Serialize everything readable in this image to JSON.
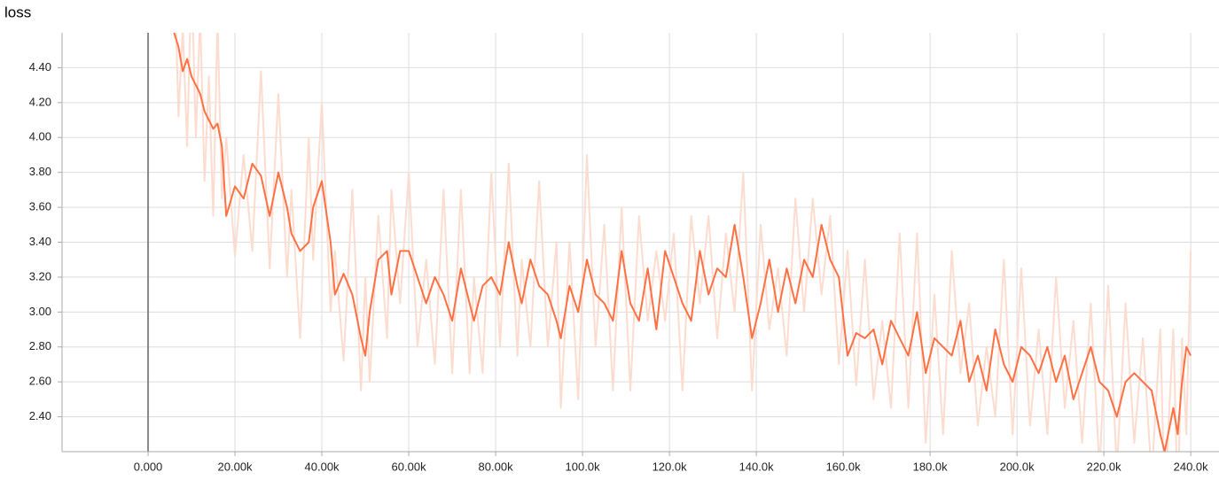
{
  "chart_data": {
    "type": "line",
    "title": "loss",
    "x": [
      6000,
      7000,
      8000,
      9000,
      10000,
      11000,
      12000,
      13000,
      14000,
      15000,
      16000,
      17000,
      18000,
      20000,
      22000,
      24000,
      26000,
      28000,
      30000,
      32000,
      33000,
      35000,
      37000,
      38000,
      40000,
      42000,
      43000,
      45000,
      47000,
      49000,
      50000,
      51000,
      53000,
      55000,
      56000,
      58000,
      60000,
      62000,
      64000,
      66000,
      68000,
      70000,
      72000,
      74000,
      75000,
      77000,
      79000,
      81000,
      83000,
      85000,
      86000,
      88000,
      90000,
      92000,
      94000,
      95000,
      97000,
      99000,
      101000,
      103000,
      105000,
      107000,
      109000,
      111000,
      113000,
      115000,
      117000,
      119000,
      121000,
      123000,
      125000,
      127000,
      129000,
      131000,
      133000,
      135000,
      137000,
      139000,
      141000,
      143000,
      145000,
      147000,
      149000,
      151000,
      153000,
      155000,
      157000,
      159000,
      161000,
      163000,
      165000,
      167000,
      169000,
      171000,
      173000,
      175000,
      177000,
      179000,
      181000,
      183000,
      185000,
      187000,
      189000,
      191000,
      193000,
      195000,
      197000,
      199000,
      201000,
      203000,
      205000,
      207000,
      209000,
      211000,
      213000,
      215000,
      217000,
      219000,
      221000,
      223000,
      225000,
      227000,
      229000,
      231000,
      233000,
      234000,
      236000,
      237000,
      238000,
      239000,
      240000
    ],
    "series": [
      {
        "color": "#fddcd0",
        "values": [
          5.05,
          4.12,
          4.63,
          3.95,
          4.95,
          4.0,
          4.7,
          3.75,
          4.35,
          3.55,
          4.68,
          3.65,
          4.0,
          3.32,
          3.9,
          3.35,
          4.38,
          3.25,
          4.25,
          3.2,
          3.7,
          2.85,
          4.0,
          3.3,
          4.2,
          3.0,
          3.35,
          2.72,
          3.7,
          2.55,
          3.2,
          2.6,
          3.55,
          2.85,
          3.7,
          3.05,
          3.8,
          2.8,
          3.3,
          2.7,
          3.7,
          2.65,
          3.7,
          2.65,
          3.2,
          2.65,
          3.8,
          2.8,
          3.85,
          2.75,
          3.3,
          2.8,
          3.75,
          2.8,
          3.4,
          2.45,
          3.4,
          2.5,
          3.9,
          2.8,
          3.5,
          2.55,
          3.6,
          2.55,
          3.55,
          2.95,
          3.35,
          2.95,
          3.45,
          2.55,
          3.55,
          3.05,
          3.55,
          2.85,
          3.45,
          3.0,
          3.8,
          2.55,
          3.5,
          2.9,
          3.25,
          2.75,
          3.65,
          3.0,
          3.65,
          3.1,
          3.55,
          2.7,
          3.35,
          2.58,
          3.3,
          2.5,
          2.95,
          2.45,
          3.45,
          2.45,
          3.45,
          2.25,
          3.1,
          2.3,
          3.35,
          2.65,
          3.05,
          2.35,
          2.8,
          2.4,
          3.3,
          2.3,
          3.25,
          2.35,
          2.9,
          2.3,
          3.2,
          2.45,
          2.95,
          2.25,
          3.05,
          2.1,
          3.15,
          2.1,
          3.05,
          2.25,
          2.85,
          2.05,
          2.9,
          1.9,
          2.9,
          1.9,
          2.85,
          2.3,
          3.35
        ]
      },
      {
        "color": "#ff7043",
        "values": [
          4.6,
          4.52,
          4.38,
          4.45,
          4.35,
          4.3,
          4.25,
          4.15,
          4.1,
          4.05,
          4.08,
          3.95,
          3.55,
          3.72,
          3.65,
          3.85,
          3.78,
          3.55,
          3.8,
          3.6,
          3.45,
          3.35,
          3.4,
          3.6,
          3.75,
          3.4,
          3.1,
          3.22,
          3.1,
          2.85,
          2.75,
          3.0,
          3.3,
          3.35,
          3.1,
          3.35,
          3.35,
          3.2,
          3.05,
          3.2,
          3.1,
          2.95,
          3.25,
          3.05,
          2.95,
          3.15,
          3.2,
          3.1,
          3.4,
          3.15,
          3.05,
          3.3,
          3.15,
          3.1,
          2.95,
          2.85,
          3.15,
          3.0,
          3.3,
          3.1,
          3.05,
          2.95,
          3.35,
          3.05,
          2.95,
          3.25,
          2.9,
          3.35,
          3.2,
          3.05,
          2.95,
          3.35,
          3.1,
          3.25,
          3.2,
          3.5,
          3.2,
          2.85,
          3.05,
          3.3,
          3.0,
          3.25,
          3.05,
          3.3,
          3.2,
          3.5,
          3.3,
          3.2,
          2.75,
          2.88,
          2.85,
          2.9,
          2.7,
          2.95,
          2.85,
          2.75,
          3.0,
          2.65,
          2.85,
          2.8,
          2.75,
          2.95,
          2.6,
          2.75,
          2.55,
          2.9,
          2.7,
          2.6,
          2.8,
          2.75,
          2.65,
          2.8,
          2.6,
          2.75,
          2.5,
          2.65,
          2.8,
          2.6,
          2.55,
          2.4,
          2.6,
          2.65,
          2.6,
          2.55,
          2.3,
          2.2,
          2.45,
          2.3,
          2.6,
          2.8,
          2.75
        ]
      }
    ],
    "xlim": [
      -19800,
      246500
    ],
    "ylim": [
      2.2,
      4.6
    ],
    "xticks": [
      {
        "value": 0,
        "label": "0.000"
      },
      {
        "value": 20000,
        "label": "20.00k"
      },
      {
        "value": 40000,
        "label": "40.00k"
      },
      {
        "value": 60000,
        "label": "60.00k"
      },
      {
        "value": 80000,
        "label": "80.00k"
      },
      {
        "value": 100000,
        "label": "100.0k"
      },
      {
        "value": 120000,
        "label": "120.0k"
      },
      {
        "value": 140000,
        "label": "140.0k"
      },
      {
        "value": 160000,
        "label": "160.0k"
      },
      {
        "value": 180000,
        "label": "180.0k"
      },
      {
        "value": 200000,
        "label": "200.0k"
      },
      {
        "value": 220000,
        "label": "220.0k"
      },
      {
        "value": 240000,
        "label": "240.0k"
      }
    ],
    "yticks": [
      {
        "value": 2.4,
        "label": "2.40"
      },
      {
        "value": 2.6,
        "label": "2.60"
      },
      {
        "value": 2.8,
        "label": "2.80"
      },
      {
        "value": 3.0,
        "label": "3.00"
      },
      {
        "value": 3.2,
        "label": "3.20"
      },
      {
        "value": 3.4,
        "label": "3.40"
      },
      {
        "value": 3.6,
        "label": "3.60"
      },
      {
        "value": 3.8,
        "label": "3.80"
      },
      {
        "value": 4.0,
        "label": "4.00"
      },
      {
        "value": 4.2,
        "label": "4.20"
      },
      {
        "value": 4.4,
        "label": "4.40"
      }
    ],
    "grid": true
  }
}
